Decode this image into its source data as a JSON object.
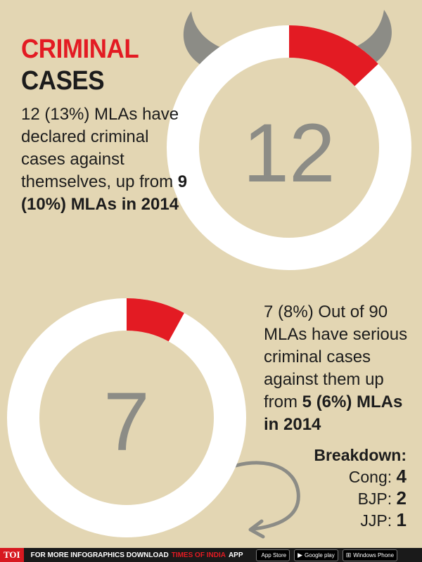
{
  "title": {
    "line1": "CRIMINAL",
    "line2": "CASES"
  },
  "top_block": {
    "text_plain": "12 (13%) MLAs have declared criminal cases against themselves, up from ",
    "text_bold": "9 (10%) MLAs in 2014"
  },
  "bottom_block": {
    "text_plain": "7 (8%) Out of 90 MLAs have serious criminal cases against them up from ",
    "text_bold": "5 (6%) MLAs in 2014"
  },
  "breakdown": {
    "title": "Breakdown:",
    "rows": [
      {
        "party": "Cong:",
        "value": "4"
      },
      {
        "party": "BJP:",
        "value": "2"
      },
      {
        "party": "JJP:",
        "value": "1"
      }
    ]
  },
  "footer": {
    "logo": "TOI",
    "text_a": "FOR MORE  INFOGRAPHICS DOWNLOAD",
    "text_red": "TIMES OF INDIA",
    "text_b": "APP",
    "badges": [
      {
        "icon": "apple-icon",
        "glyph": "",
        "label": "App Store"
      },
      {
        "icon": "google-play-icon",
        "glyph": "▶",
        "label": "Google play"
      },
      {
        "icon": "windows-icon",
        "glyph": "⊞",
        "label": "Windows Phone"
      }
    ]
  },
  "colors": {
    "background": "#e3d6b3",
    "ring": "#ffffff",
    "highlight": "#e31b23",
    "horns": "#8c8c86",
    "number": "#8c8c86"
  },
  "chart_data": [
    {
      "type": "pie",
      "center_label": "12",
      "total": 90,
      "values": [
        12,
        78
      ],
      "highlight_fraction": 0.13
    },
    {
      "type": "pie",
      "center_label": "7",
      "total": 90,
      "values": [
        7,
        83
      ],
      "highlight_fraction": 0.08
    }
  ]
}
